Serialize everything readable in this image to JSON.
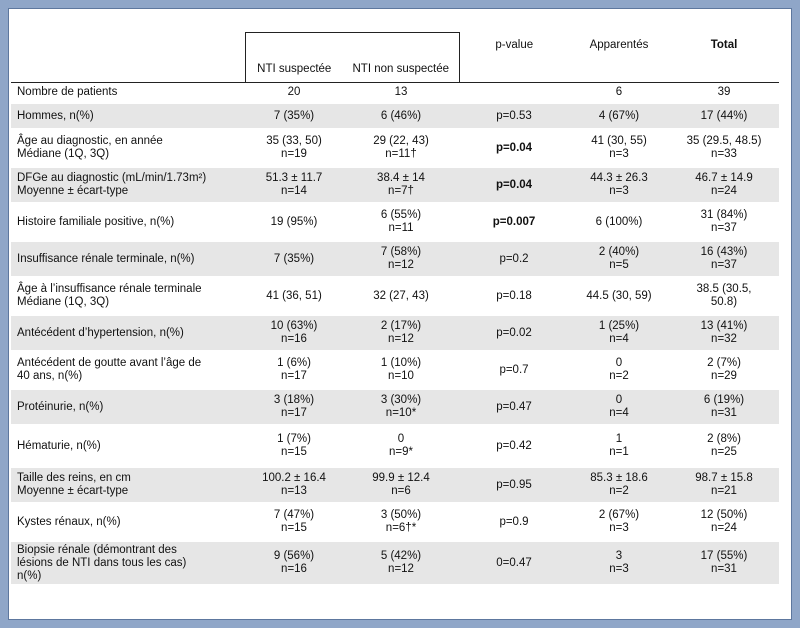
{
  "header": {
    "col1": "NTI suspectée",
    "col2": "NTI non suspectée",
    "col3": "p-value",
    "col4": "Apparentés",
    "col5": "Total"
  },
  "rows": [
    {
      "label": [
        "Nombre de patients"
      ],
      "c1": [
        "20"
      ],
      "c2": [
        "13"
      ],
      "p": "",
      "c4": [
        "6"
      ],
      "c5": [
        "39"
      ]
    },
    {
      "label": [
        "Hommes, n(%)"
      ],
      "c1": [
        "7 (35%)"
      ],
      "c2": [
        "6 (46%)"
      ],
      "p": "p=0.53",
      "c4": [
        "4 (67%)"
      ],
      "c5": [
        "17 (44%)"
      ]
    },
    {
      "label": [
        "Âge au diagnostic, en année",
        "Médiane (1Q, 3Q)"
      ],
      "c1": [
        "35 (33, 50)",
        "n=19"
      ],
      "c2": [
        "29 (22, 43)",
        "n=11†"
      ],
      "p": "p=0.04",
      "c4": [
        "41 (30, 55)",
        "n=3"
      ],
      "c5": [
        "35 (29.5, 48.5)",
        "n=33"
      ]
    },
    {
      "label": [
        "DFGe au diagnostic (mL/min/1.73m²)",
        "Moyenne ± écart-type"
      ],
      "c1": [
        "51.3 ± 11.7",
        "n=14"
      ],
      "c2": [
        "38.4 ± 14",
        "n=7†"
      ],
      "p": "p=0.04",
      "c4": [
        "44.3 ± 26.3",
        "n=3"
      ],
      "c5": [
        "46.7 ± 14.9",
        "n=24"
      ]
    },
    {
      "label": [
        "Histoire familiale positive, n(%)"
      ],
      "c1": [
        "19 (95%)"
      ],
      "c2": [
        "6 (55%)",
        "n=11"
      ],
      "p": "p=0.007",
      "c4": [
        "6 (100%)"
      ],
      "c5": [
        "31 (84%)",
        "n=37"
      ]
    },
    {
      "label": [
        "Insuffisance rénale terminale, n(%)"
      ],
      "c1": [
        "7 (35%)"
      ],
      "c2": [
        "7 (58%)",
        "n=12"
      ],
      "p": "p=0.2",
      "c4": [
        "2 (40%)",
        "n=5"
      ],
      "c5": [
        "16 (43%)",
        "n=37"
      ]
    },
    {
      "label": [
        "Âge à l’insuffisance rénale terminale",
        "Médiane (1Q, 3Q)"
      ],
      "c1": [
        "41 (36, 51)"
      ],
      "c2": [
        "32 (27, 43)"
      ],
      "p": "p=0.18",
      "c4": [
        "44.5 (30, 59)"
      ],
      "c5": [
        "38.5 (30.5,",
        "50.8)"
      ]
    },
    {
      "label": [
        "Antécédent d’hypertension,  n(%)"
      ],
      "c1": [
        "10 (63%)",
        "n=16"
      ],
      "c2": [
        "2 (17%)",
        "n=12"
      ],
      "p": "p=0.02",
      "c4": [
        "1 (25%)",
        "n=4"
      ],
      "c5": [
        "13 (41%)",
        "n=32"
      ]
    },
    {
      "label": [
        "Antécédent de goutte avant l’âge de",
        "40 ans, n(%)"
      ],
      "c1": [
        "1 (6%)",
        "n=17"
      ],
      "c2": [
        "1 (10%)",
        "n=10"
      ],
      "p": "p=0.7",
      "c4": [
        "0",
        "n=2"
      ],
      "c5": [
        "2 (7%)",
        "n=29"
      ]
    },
    {
      "label": [
        "Protéinurie, n(%)"
      ],
      "c1": [
        "3 (18%)",
        "n=17"
      ],
      "c2": [
        "3 (30%)",
        "n=10*"
      ],
      "p": "p=0.47",
      "c4": [
        "0",
        "n=4"
      ],
      "c5": [
        "6 (19%)",
        "n=31"
      ]
    },
    {
      "label": [
        "Hématurie, n(%)"
      ],
      "c1": [
        "1 (7%)",
        "n=15"
      ],
      "c2": [
        "0",
        "n=9*"
      ],
      "p": "p=0.42",
      "c4": [
        "1",
        "n=1"
      ],
      "c5": [
        "2 (8%)",
        "n=25"
      ]
    },
    {
      "label": [
        "Taille des reins, en cm",
        "Moyenne ± écart-type"
      ],
      "c1": [
        "100.2 ± 16.4",
        "n=13"
      ],
      "c2": [
        "99.9 ± 12.4",
        "n=6"
      ],
      "p": "p=0.95",
      "c4": [
        "85.3 ± 18.6",
        "n=2"
      ],
      "c5": [
        "98.7 ± 15.8",
        "n=21"
      ]
    },
    {
      "label": [
        "Kystes rénaux, n(%)"
      ],
      "c1": [
        "7 (47%)",
        "n=15"
      ],
      "c2": [
        "3 (50%)",
        "n=6†*"
      ],
      "p": "p=0.9",
      "c4": [
        "2 (67%)",
        "n=3"
      ],
      "c5": [
        "12 (50%)",
        "n=24"
      ]
    },
    {
      "label": [
        "Biopsie rénale (démontrant des",
        "lésions de NTI dans tous les cas)",
        "n(%)"
      ],
      "c1": [
        "9 (56%)",
        "n=16"
      ],
      "c2": [
        "5 (42%)",
        "n=12"
      ],
      "p": "0=0.47",
      "c4": [
        "3",
        "n=3"
      ],
      "c5": [
        "17 (55%)",
        "n=31"
      ]
    }
  ]
}
